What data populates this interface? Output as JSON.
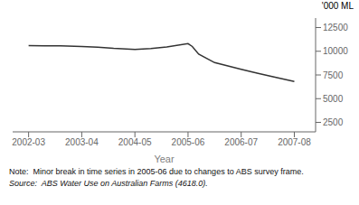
{
  "chart_data": {
    "type": "line",
    "xlabel": "Year",
    "ylabel": "'000 ML",
    "x": [
      0,
      0.3,
      0.6,
      1,
      1.3,
      1.6,
      2,
      2.3,
      2.6,
      3,
      3.08,
      3.2,
      3.5,
      4,
      4.3,
      4.6,
      5
    ],
    "values": [
      10600,
      10580,
      10560,
      10500,
      10420,
      10300,
      10200,
      10280,
      10450,
      10800,
      10500,
      9700,
      8800,
      8100,
      7700,
      7300,
      6800
    ],
    "color": "#333333",
    "xlim": [
      -0.3,
      5.4
    ],
    "xticks": [
      {
        "value": 0,
        "label": "2002-03"
      },
      {
        "value": 1,
        "label": "2003-04"
      },
      {
        "value": 2,
        "label": "2004-05"
      },
      {
        "value": 3,
        "label": "2005-06"
      },
      {
        "value": 4,
        "label": "2006-07"
      },
      {
        "value": 5,
        "label": "2007-08"
      }
    ],
    "ylim": [
      1500,
      13500
    ],
    "yticks": [
      2500,
      5000,
      7500,
      10000,
      12500
    ],
    "grid": false,
    "annotations": [
      "Note:  Minor break in time series in 2005-06 due to changes to ABS survey frame.",
      "Source:  ABS Water Use on Australian Farms (4618.0)."
    ]
  }
}
